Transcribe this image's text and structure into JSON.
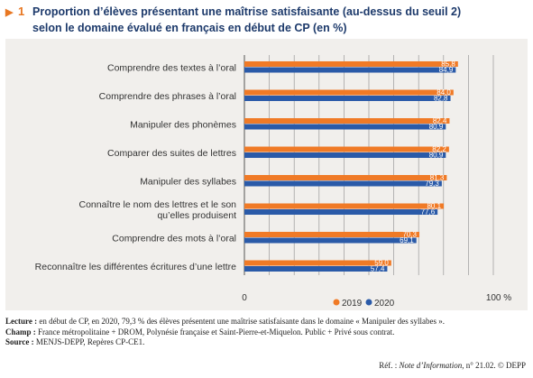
{
  "figure": {
    "arrow": "▶",
    "number": "1",
    "title_line1": "Proportion d’élèves présentant une maîtrise satisfaisante (au-dessus du seuil 2)",
    "title_line2": "selon le domaine évalué en français en début de CP (en %)"
  },
  "colors": {
    "series_2019": "#f07a26",
    "series_2020": "#2a5aa8",
    "panel_bg": "#f1efec",
    "title": "#1d3a6b",
    "accent": "#e87722"
  },
  "chart_data": {
    "type": "bar",
    "orientation": "horizontal",
    "categories": [
      "Comprendre des textes à l’oral",
      "Comprendre des phrases à l’oral",
      "Manipuler des phonèmes",
      "Comparer des suites de lettres",
      "Manipuler des syllabes",
      "Connaître le nom des lettres et le son qu’elles produisent",
      "Comprendre des mots à l’oral",
      "Reconnaître les différentes écritures d’une lettre"
    ],
    "category_lines": [
      [
        "Comprendre des textes à l’oral"
      ],
      [
        "Comprendre des phrases à l’oral"
      ],
      [
        "Manipuler des phonèmes"
      ],
      [
        "Comparer des suites de lettres"
      ],
      [
        "Manipuler des syllabes"
      ],
      [
        "Connaître le nom des lettres et le son",
        "qu’elles produisent"
      ],
      [
        "Comprendre des mots à l’oral"
      ],
      [
        "Reconnaître les différentes écritures d’une lettre"
      ]
    ],
    "series": [
      {
        "name": "2019",
        "values": [
          85.8,
          84.0,
          82.4,
          82.2,
          81.3,
          80.1,
          70.3,
          59.0
        ],
        "labels": [
          "85,8",
          "84,0",
          "82,4",
          "82,2",
          "81,3",
          "80,1",
          "70,3",
          "59,0"
        ]
      },
      {
        "name": "2020",
        "values": [
          84.9,
          82.8,
          80.9,
          80.9,
          79.3,
          77.6,
          69.1,
          57.4
        ],
        "labels": [
          "84,9",
          "82,8",
          "80,9",
          "80,9",
          "79,3",
          "77,6",
          "69,1",
          "57,4"
        ]
      }
    ],
    "xlim": [
      0,
      100
    ],
    "x_tick_labels": [
      "0",
      "100 %"
    ],
    "grid": "vertical lines every 10 units",
    "legend": "bottom-right",
    "xlabel": "",
    "ylabel": ""
  },
  "notes": {
    "lecture_label": "Lecture :",
    "lecture_text": "en début de CP, en 2020, 79,3 % des élèves présentent une maîtrise satisfaisante dans le domaine « Manipuler des syllabes ».",
    "champ_label": "Champ :",
    "champ_text": "France métropolitaine + DROM, Polynésie française et Saint-Pierre-et-Miquelon. Public + Privé sous contrat.",
    "source_label": "Source :",
    "source_text": "MENJS-DEPP, Repères CP-CE1.",
    "ref_prefix": "Réf. : ",
    "ref_pub": "Note d’Information",
    "ref_suffix": ", n° 21.02. © DEPP"
  }
}
